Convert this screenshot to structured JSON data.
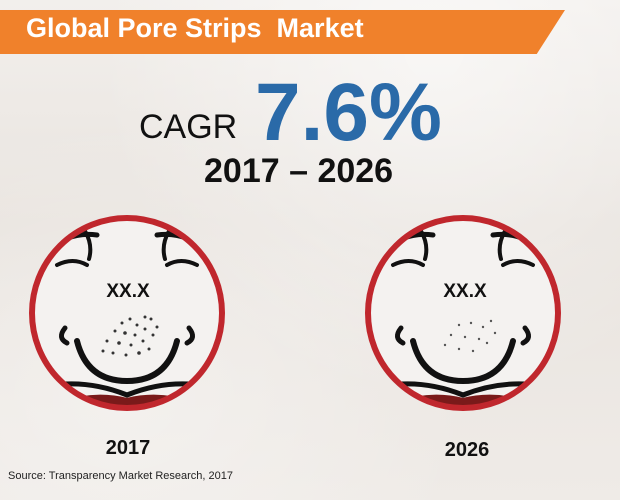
{
  "banner": {
    "title": "Global Pore Strips  Market",
    "color": "#f0812b"
  },
  "cagr": {
    "label": "CAGR",
    "value": "7.6%",
    "period": "2017 – 2026",
    "value_color": "#2a6aa8"
  },
  "circles": [
    {
      "value": "XX.X",
      "year": "2017",
      "icon": "nose-pores-icon"
    },
    {
      "value": "XX.X",
      "year": "2026",
      "icon": "nose-pores-icon"
    }
  ],
  "circle_border_color": "#c0272d",
  "source": "Source: Transparency Market Research, 2017"
}
